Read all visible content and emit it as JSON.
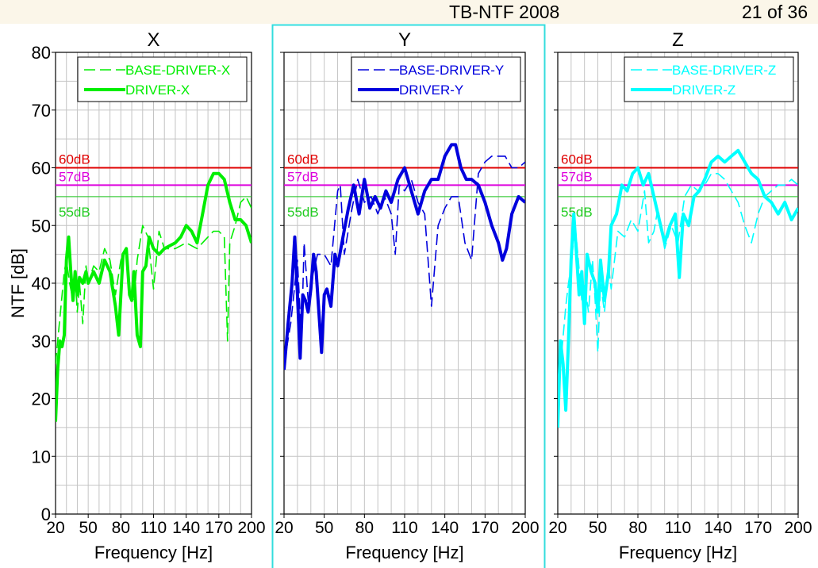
{
  "header": {
    "title": "TB-NTF 2008",
    "page_indicator": "21 of 36"
  },
  "colors": {
    "x": "#00ee00",
    "y": "#0000dd",
    "z": "#00ffff",
    "line60": "#e00000",
    "line57": "#dd00dd",
    "line55": "#22cc22",
    "selected_border": "#33dddd"
  },
  "y_axis": {
    "label": "NTF [dB]",
    "ticks": [
      "0",
      "10",
      "20",
      "30",
      "40",
      "50",
      "60",
      "70",
      "80"
    ],
    "ylim": [
      0,
      80
    ]
  },
  "x_axis": {
    "label": "Frequency [Hz]",
    "ticks": [
      "20",
      "50",
      "80",
      "110",
      "140",
      "170",
      "200"
    ],
    "xlim": [
      20,
      200
    ]
  },
  "reference_lines": [
    {
      "label": "60dB",
      "value": 60,
      "color": "#e00000"
    },
    {
      "label": "57dB",
      "value": 57,
      "color": "#dd00dd"
    },
    {
      "label": "55dB",
      "value": 55,
      "color": "#22cc22"
    }
  ],
  "chart_data": [
    {
      "type": "line",
      "title": "X",
      "color": "#00ee00",
      "grid": true,
      "legend": "top-right",
      "xlabel": "Frequency [Hz]",
      "ylabel": "NTF [dB]",
      "xlim": [
        20,
        200
      ],
      "ylim": [
        0,
        80
      ],
      "series": [
        {
          "name": "BASE-DRIVER-X",
          "style": "dashed",
          "x": [
            20,
            22,
            25,
            28,
            30,
            33,
            35,
            38,
            40,
            42,
            45,
            48,
            50,
            55,
            60,
            65,
            70,
            75,
            80,
            85,
            88,
            92,
            95,
            100,
            105,
            110,
            115,
            120,
            130,
            140,
            150,
            160,
            165,
            170,
            175,
            178,
            180,
            185,
            190,
            195,
            200
          ],
          "y": [
            26,
            30,
            36,
            42,
            44,
            40,
            38,
            41,
            35,
            40,
            33,
            43,
            40,
            43,
            42,
            46,
            44,
            38,
            44,
            46,
            38,
            37,
            44,
            50,
            48,
            39,
            49,
            46,
            46,
            47,
            46,
            48,
            49,
            49,
            48,
            30,
            47,
            50,
            54,
            55,
            53
          ]
        },
        {
          "name": "DRIVER-X",
          "style": "solid",
          "x": [
            20,
            22,
            24,
            26,
            28,
            30,
            32,
            34,
            36,
            38,
            40,
            42,
            45,
            48,
            50,
            55,
            60,
            65,
            70,
            75,
            78,
            82,
            85,
            88,
            90,
            92,
            95,
            98,
            100,
            103,
            106,
            110,
            115,
            120,
            130,
            135,
            140,
            145,
            150,
            155,
            160,
            165,
            170,
            175,
            180,
            185,
            190,
            195,
            200
          ],
          "y": [
            16,
            25,
            30,
            29,
            31,
            44,
            48,
            42,
            37,
            42,
            38,
            41,
            40,
            42,
            40,
            42,
            40,
            44,
            42,
            36,
            31,
            45,
            46,
            38,
            37,
            42,
            31,
            29,
            42,
            43,
            48,
            46,
            45,
            46,
            47,
            48,
            50,
            49,
            47,
            52,
            57,
            59,
            59,
            58,
            54,
            51,
            51,
            50,
            47
          ]
        }
      ]
    },
    {
      "type": "line",
      "title": "Y",
      "color": "#0000dd",
      "grid": true,
      "legend": "top-right",
      "xlabel": "Frequency [Hz]",
      "ylabel": "NTF [dB]",
      "xlim": [
        20,
        200
      ],
      "ylim": [
        0,
        80
      ],
      "series": [
        {
          "name": "BASE-DRIVER-Y",
          "style": "dashed",
          "x": [
            20,
            25,
            30,
            33,
            35,
            38,
            40,
            45,
            50,
            55,
            60,
            62,
            65,
            70,
            75,
            80,
            85,
            90,
            95,
            100,
            103,
            106,
            110,
            115,
            120,
            125,
            130,
            135,
            140,
            145,
            150,
            155,
            160,
            165,
            170,
            175,
            180,
            185,
            190,
            195,
            200
          ],
          "y": [
            26,
            33,
            44,
            30,
            47,
            37,
            40,
            45,
            45,
            43,
            56,
            57,
            45,
            52,
            58,
            54,
            55,
            52,
            55,
            52,
            45,
            57,
            56,
            58,
            54,
            52,
            36,
            50,
            53,
            55,
            55,
            47,
            44,
            59,
            61,
            62,
            62,
            62,
            60,
            60,
            61
          ]
        },
        {
          "name": "DRIVER-Y",
          "style": "solid",
          "x": [
            20,
            23,
            26,
            28,
            30,
            32,
            34,
            36,
            38,
            40,
            42,
            44,
            46,
            48,
            50,
            52,
            55,
            58,
            60,
            64,
            68,
            72,
            76,
            80,
            84,
            88,
            92,
            96,
            100,
            105,
            110,
            115,
            120,
            125,
            130,
            135,
            140,
            145,
            148,
            152,
            156,
            160,
            165,
            170,
            175,
            180,
            183,
            186,
            190,
            195,
            200
          ],
          "y": [
            25,
            33,
            40,
            48,
            38,
            27,
            38,
            37,
            35,
            39,
            45,
            42,
            35,
            28,
            38,
            39,
            36,
            45,
            43,
            48,
            53,
            57,
            52,
            58,
            53,
            55,
            53,
            56,
            54,
            58,
            60,
            56,
            52,
            56,
            58,
            58,
            62,
            64,
            64,
            60,
            58,
            58,
            57,
            54,
            50,
            47,
            44,
            46,
            52,
            55,
            54
          ]
        }
      ]
    },
    {
      "type": "line",
      "title": "Z",
      "color": "#00ffff",
      "grid": true,
      "legend": "top-right",
      "xlabel": "Frequency [Hz]",
      "ylabel": "NTF [dB]",
      "xlim": [
        20,
        200
      ],
      "ylim": [
        0,
        80
      ],
      "series": [
        {
          "name": "BASE-DRIVER-Z",
          "style": "dashed",
          "x": [
            20,
            23,
            26,
            28,
            30,
            33,
            35,
            38,
            40,
            43,
            46,
            48,
            50,
            52,
            55,
            58,
            60,
            65,
            70,
            75,
            80,
            85,
            88,
            92,
            95,
            100,
            105,
            110,
            115,
            120,
            125,
            130,
            135,
            140,
            145,
            150,
            155,
            160,
            165,
            170,
            175,
            180,
            185,
            190,
            195,
            200
          ],
          "y": [
            20,
            28,
            36,
            40,
            43,
            50,
            45,
            37,
            40,
            35,
            44,
            37,
            28,
            40,
            35,
            43,
            39,
            49,
            48,
            51,
            49,
            56,
            47,
            49,
            53,
            46,
            50,
            47,
            55,
            57,
            56,
            57,
            59,
            59,
            58,
            56,
            54,
            50,
            47,
            52,
            55,
            56,
            57,
            57,
            58,
            57
          ]
        },
        {
          "name": "DRIVER-Z",
          "style": "solid",
          "x": [
            20,
            22,
            24,
            26,
            28,
            30,
            32,
            34,
            36,
            38,
            40,
            42,
            45,
            48,
            50,
            52,
            55,
            58,
            60,
            64,
            68,
            72,
            76,
            80,
            84,
            88,
            92,
            96,
            100,
            104,
            108,
            111,
            114,
            118,
            122,
            126,
            130,
            135,
            140,
            145,
            150,
            155,
            160,
            165,
            170,
            175,
            180,
            185,
            190,
            195,
            200
          ],
          "y": [
            15,
            30,
            26,
            18,
            30,
            44,
            52,
            45,
            38,
            42,
            33,
            45,
            42,
            40,
            35,
            44,
            37,
            42,
            50,
            52,
            57,
            56,
            59,
            60,
            57,
            59,
            55,
            51,
            47,
            50,
            52,
            41,
            52,
            50,
            55,
            56,
            58,
            61,
            62,
            61,
            62,
            63,
            61,
            59,
            58,
            55,
            54,
            52,
            54,
            51,
            53
          ]
        }
      ]
    }
  ]
}
